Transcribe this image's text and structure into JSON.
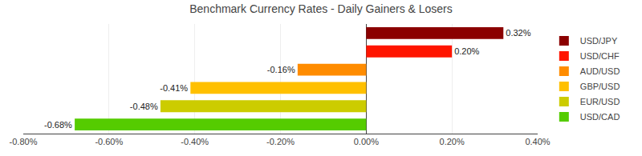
{
  "chart_data": {
    "type": "bar",
    "orientation": "horizontal",
    "title": "Benchmark Currency Rates - Daily Gainers & Losers",
    "categories": [
      "USD/JPY",
      "USD/CHF",
      "AUD/USD",
      "GBP/USD",
      "EUR/USD",
      "USD/CAD"
    ],
    "values": [
      0.32,
      0.2,
      -0.16,
      -0.41,
      -0.48,
      -0.68
    ],
    "value_labels": [
      "0.32%",
      "0.20%",
      "-0.16%",
      "-0.41%",
      "-0.48%",
      "-0.68%"
    ],
    "colors": [
      "#8B0000",
      "#FF1500",
      "#FF8C00",
      "#FFC000",
      "#CCCC00",
      "#55CC00"
    ],
    "xlim": [
      -0.8,
      0.4
    ],
    "xticks": [
      {
        "value": -0.8,
        "label": "-0.80%"
      },
      {
        "value": -0.6,
        "label": "-0.60%"
      },
      {
        "value": -0.4,
        "label": "-0.40%"
      },
      {
        "value": -0.2,
        "label": "-0.20%"
      },
      {
        "value": 0.0,
        "label": "0.00%"
      },
      {
        "value": 0.2,
        "label": "0.20%"
      },
      {
        "value": 0.4,
        "label": "0.40%"
      }
    ],
    "grid": true,
    "data_labels": true,
    "tick_labels": "x",
    "legend": "right"
  }
}
